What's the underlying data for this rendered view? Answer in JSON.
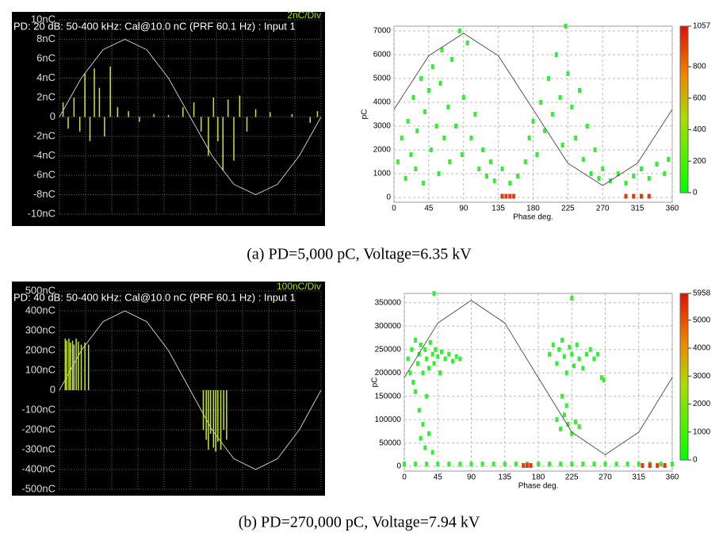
{
  "chart_data": [
    {
      "type": "line",
      "title": "PD: 20 dB: 50-400 kHz: Cal@10.0 nC (PRF 60.1 Hz) : Input 1",
      "scale_label": "2nC/Div",
      "xlim": [
        0,
        360
      ],
      "ylim": [
        -10,
        10
      ],
      "yticks": [
        {
          "value": 10,
          "label": "10nC"
        },
        {
          "value": 8,
          "label": "8nC"
        },
        {
          "value": 6,
          "label": "6nC"
        },
        {
          "value": 4,
          "label": "4nC"
        },
        {
          "value": 2,
          "label": "2nC"
        },
        0,
        {
          "value": -2,
          "label": "-2nC"
        },
        {
          "value": -4,
          "label": "-4nC"
        },
        {
          "value": -6,
          "label": "-6nC"
        },
        {
          "value": -8,
          "label": "-8nC"
        },
        {
          "value": -10,
          "label": "-10nC"
        }
      ],
      "grid": true,
      "background": "#000000",
      "series": [
        {
          "style": "line",
          "color": "#c8c8c8",
          "x": [
            0,
            30,
            60,
            90,
            120,
            150,
            180,
            210,
            240,
            270,
            300,
            330,
            360
          ],
          "values": [
            0,
            4,
            6.93,
            8,
            6.93,
            4,
            0,
            -4,
            -6.93,
            -8,
            -6.93,
            -4,
            0
          ]
        },
        {
          "style": "pulse",
          "color": "#c8e632",
          "x": [
            5,
            12,
            20,
            28,
            35,
            42,
            48,
            55,
            62,
            70,
            80,
            95,
            110,
            130,
            150,
            170,
            185,
            195,
            205,
            212,
            218,
            225,
            232,
            240,
            248,
            258,
            270,
            290,
            320,
            345,
            355
          ],
          "values": [
            1.5,
            -1.2,
            2,
            -1.5,
            4.5,
            -2.5,
            5,
            3,
            -2,
            5.2,
            1,
            0.6,
            -0.5,
            0.3,
            0.2,
            1,
            1.5,
            -1.5,
            -4,
            2,
            -2.5,
            -5.5,
            1.8,
            -4.5,
            2.2,
            -1.5,
            0.8,
            0.5,
            0.3,
            -0.6,
            0.6
          ]
        }
      ]
    },
    {
      "type": "scatter",
      "xlabel": "Phase deg.",
      "ylabel": "pC",
      "xlim": [
        0,
        360
      ],
      "xticks": [
        0,
        45,
        90,
        135,
        180,
        225,
        270,
        315,
        360
      ],
      "ylim": [
        -200,
        7200
      ],
      "yticks": [
        0,
        1000,
        2000,
        3000,
        4000,
        5000,
        6000,
        7000
      ],
      "clim": [
        0,
        1057
      ],
      "cticks": [
        0,
        200,
        400,
        600,
        800,
        1057
      ],
      "grid": true,
      "series": [
        {
          "style": "points",
          "color": "#33ee33",
          "x": [
            5,
            10,
            15,
            18,
            22,
            25,
            28,
            30,
            35,
            38,
            40,
            45,
            48,
            50,
            55,
            58,
            60,
            62,
            65,
            70,
            72,
            75,
            80,
            85,
            88,
            90,
            95,
            100,
            105,
            110,
            115,
            120,
            125,
            130,
            140,
            150,
            160,
            170,
            175,
            180,
            185,
            190,
            195,
            200,
            205,
            210,
            215,
            218,
            222,
            225,
            230,
            235,
            240,
            245,
            250,
            255,
            260,
            265,
            270,
            280,
            290,
            300,
            310,
            320,
            330,
            340,
            350,
            355
          ],
          "values": [
            1500,
            2500,
            800,
            3200,
            1800,
            4200,
            1200,
            2800,
            5000,
            600,
            3600,
            4500,
            2000,
            5500,
            3000,
            1000,
            4800,
            6200,
            2500,
            3800,
            1500,
            5800,
            3000,
            7000,
            1800,
            4200,
            6500,
            2500,
            3500,
            1200,
            2000,
            900,
            1500,
            700,
            1200,
            600,
            900,
            1500,
            2500,
            3200,
            1800,
            4000,
            2800,
            5000,
            3500,
            6000,
            4200,
            2200,
            7200,
            5200,
            3800,
            2500,
            4500,
            1600,
            3000,
            1000,
            2000,
            800,
            1200,
            700,
            1000,
            600,
            900,
            1200,
            800,
            1400,
            1000,
            1600
          ]
        },
        {
          "style": "points",
          "color": "#e03a10",
          "x": [
            140,
            145,
            150,
            155,
            300,
            310,
            320,
            330
          ],
          "values": [
            50,
            50,
            50,
            50,
            50,
            50,
            50,
            50
          ]
        },
        {
          "style": "line",
          "color": "#555555",
          "x": [
            0,
            45,
            90,
            135,
            180,
            225,
            270,
            315,
            360
          ],
          "values": [
            3700,
            5960,
            6900,
            5960,
            3700,
            1440,
            500,
            1440,
            3700
          ]
        }
      ]
    },
    {
      "type": "line",
      "title": "PD: 40 dB: 50-400 kHz: Cal@10.0 nC (PRF 60.1 Hz) : Input 1",
      "scale_label": "100nC/Div",
      "xlim": [
        0,
        360
      ],
      "ylim": [
        -500,
        500
      ],
      "yticks": [
        {
          "value": 500,
          "label": "500nC"
        },
        {
          "value": 400,
          "label": "400nC"
        },
        {
          "value": 300,
          "label": "300nC"
        },
        {
          "value": 200,
          "label": "200nC"
        },
        {
          "value": 100,
          "label": "100nC"
        },
        0,
        {
          "value": -100,
          "label": "-100nC"
        },
        {
          "value": -200,
          "label": "-200nC"
        },
        {
          "value": -300,
          "label": "-300nC"
        },
        {
          "value": -400,
          "label": "-400nC"
        },
        {
          "value": -500,
          "label": "-500nC"
        }
      ],
      "grid": true,
      "background": "#000000",
      "series": [
        {
          "style": "line",
          "color": "#c8c8c8",
          "x": [
            0,
            30,
            60,
            90,
            120,
            150,
            180,
            210,
            240,
            270,
            300,
            330,
            360
          ],
          "values": [
            0,
            200,
            346,
            400,
            346,
            200,
            0,
            -200,
            -346,
            -400,
            -346,
            -200,
            0
          ]
        },
        {
          "style": "pulse",
          "color": "#c8e632",
          "x": [
            8,
            10,
            13,
            15,
            18,
            20,
            23,
            26,
            30,
            35,
            40,
            198,
            202,
            205,
            208,
            212,
            215,
            218,
            222,
            226,
            230
          ],
          "values": [
            260,
            250,
            260,
            240,
            250,
            230,
            260,
            245,
            230,
            240,
            230,
            -200,
            -250,
            -300,
            -220,
            -290,
            -310,
            -260,
            -300,
            -200,
            -250
          ]
        }
      ]
    },
    {
      "type": "scatter",
      "xlabel": "Phase deg.",
      "ylabel": "pC",
      "xlim": [
        0,
        360
      ],
      "xticks": [
        0,
        45,
        90,
        135,
        180,
        225,
        270,
        315,
        360
      ],
      "ylim": [
        -10000,
        370000
      ],
      "yticks": [
        0,
        50000,
        100000,
        150000,
        200000,
        250000,
        300000,
        350000
      ],
      "clim": [
        0,
        5958
      ],
      "cticks": [
        0,
        1000,
        2000,
        3000,
        4000,
        5000,
        5958
      ],
      "grid": true,
      "series": [
        {
          "style": "points",
          "color": "#33ee33",
          "x": [
            5,
            8,
            10,
            12,
            15,
            18,
            20,
            22,
            25,
            28,
            30,
            33,
            35,
            38,
            40,
            42,
            45,
            48,
            50,
            55,
            60,
            65,
            70,
            75,
            20,
            22,
            25,
            28,
            30,
            33,
            38,
            15,
            195,
            200,
            205,
            208,
            212,
            215,
            218,
            222,
            225,
            228,
            232,
            235,
            240,
            245,
            250,
            255,
            260,
            265,
            268,
            205,
            210,
            215,
            220,
            225,
            230,
            235,
            212,
            218,
            225,
            40
          ],
          "values": [
            230000,
            200000,
            250000,
            180000,
            270000,
            220000,
            240000,
            260000,
            200000,
            250000,
            230000,
            210000,
            265000,
            240000,
            220000,
            250000,
            235000,
            200000,
            245000,
            230000,
            240000,
            225000,
            235000,
            230000,
            120000,
            60000,
            90000,
            40000,
            150000,
            70000,
            30000,
            160000,
            240000,
            260000,
            220000,
            250000,
            270000,
            235000,
            200000,
            255000,
            240000,
            215000,
            260000,
            230000,
            210000,
            240000,
            250000,
            230000,
            240000,
            190000,
            185000,
            100000,
            80000,
            110000,
            90000,
            70000,
            95000,
            85000,
            150000,
            130000,
            360000,
            370000
          ]
        },
        {
          "style": "points",
          "color": "#33ee33",
          "x": [
            0,
            15,
            30,
            45,
            60,
            75,
            90,
            105,
            120,
            135,
            150,
            165,
            180,
            195,
            210,
            225,
            240,
            255,
            270,
            285,
            300,
            315,
            330,
            345,
            360
          ],
          "values": [
            5000,
            5000,
            5000,
            5000,
            5000,
            5000,
            5000,
            5000,
            5000,
            5000,
            5000,
            5000,
            5000,
            5000,
            5000,
            5000,
            5000,
            5000,
            5000,
            5000,
            5000,
            5000,
            5000,
            5000,
            5000
          ]
        },
        {
          "style": "points",
          "color": "#e03a10",
          "x": [
            160,
            165,
            170,
            320,
            330,
            340,
            350
          ],
          "values": [
            2000,
            2000,
            2000,
            2000,
            2000,
            2000,
            2000
          ]
        },
        {
          "style": "line",
          "color": "#555555",
          "x": [
            0,
            45,
            90,
            135,
            180,
            225,
            270,
            315,
            360
          ],
          "values": [
            190000,
            306700,
            355000,
            306700,
            190000,
            73300,
            25000,
            73300,
            190000
          ]
        }
      ]
    }
  ],
  "captions": [
    "(a)  PD=5,000  pC,  Voltage=6.35  kV",
    "(b)  PD=270,000  pC,  Voltage=7.94  kV"
  ]
}
